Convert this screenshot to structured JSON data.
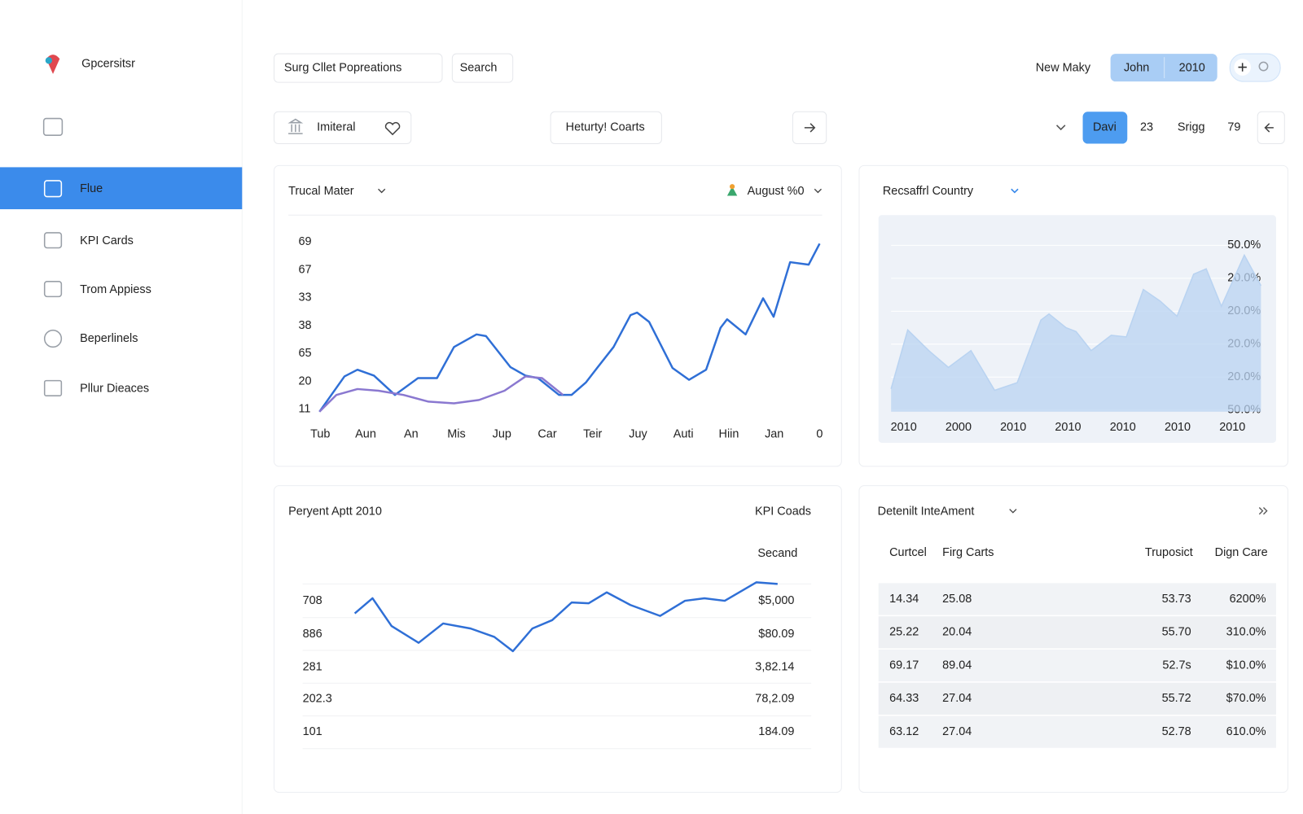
{
  "brand": "Gpcersitsr",
  "nav": [
    "Flue",
    "KPI Cards",
    "Trom Appiess",
    "Beperlinels",
    "Pllur Dieaces"
  ],
  "nav_active": 0,
  "header": {
    "title": "Surg Cllet Popreations",
    "search": "Search",
    "user": "New Maky",
    "tabs": [
      "John",
      "2010"
    ]
  },
  "toolbar": {
    "filter": "Imiteral",
    "center": "Heturty! Coarts",
    "pager": [
      "Davi",
      "23",
      "Srigg",
      "79"
    ]
  },
  "chart_data": [
    {
      "type": "line",
      "title": "Trucal Mater",
      "filter": "August %0",
      "y_labels": [
        "69",
        "67",
        "33",
        "38",
        "65",
        "20",
        "11"
      ],
      "x_labels": [
        "Tub",
        "Aun",
        "An",
        "Mis",
        "Jup",
        "Car",
        "Teir",
        "Juy",
        "Auti",
        "Hiin",
        "Jan",
        "0"
      ],
      "xlim": [
        0,
        100
      ],
      "ylim": [
        0,
        100
      ],
      "series": [
        {
          "color": "#2f6fd6",
          "x": [
            0,
            5,
            7.6,
            10.9,
            15.1,
            19.7,
            23.5,
            26.9,
            31.4,
            33.3,
            38.2,
            41.2,
            43.7,
            47.9,
            50.4,
            53.3,
            55.5,
            58.8,
            62.2,
            63.5,
            65.9,
            70.6,
            73.9,
            77.3,
            80.2,
            81.5,
            85.2,
            88.7,
            90.8,
            94.1,
            97.8,
            100
          ],
          "values": [
            0,
            21,
            25,
            21.5,
            10,
            20,
            20,
            38.5,
            46,
            45,
            26.5,
            21.5,
            20,
            10,
            10,
            17.5,
            26,
            38.5,
            57.5,
            59,
            53.5,
            26,
            19,
            25,
            50,
            55,
            46,
            67.5,
            56.5,
            89,
            87.5,
            100
          ]
        },
        {
          "color": "#8a78d0",
          "x": [
            0,
            3.4,
            7.6,
            11.8,
            16.8,
            21.8,
            26.9,
            31.9,
            37,
            41.2,
            44.5,
            48.7
          ],
          "values": [
            0,
            10,
            13.5,
            12.5,
            10,
            6,
            5,
            7,
            12.5,
            21,
            20,
            10
          ]
        }
      ]
    },
    {
      "type": "area",
      "title": "Recsaffrl Country",
      "y_labels": [
        "50.0%",
        "20.0%",
        "20.0%",
        "20.0%",
        "20.0%",
        "50.0%"
      ],
      "x_labels": [
        "2010",
        "2000",
        "2010",
        "2010",
        "2010",
        "2010",
        "2010"
      ],
      "xlim": [
        0,
        100
      ],
      "ylim": [
        0,
        110
      ],
      "color": "#b9d3f1",
      "x": [
        0,
        4.5,
        10.2,
        15.5,
        21.6,
        28,
        34.1,
        40.5,
        42.7,
        47.3,
        50,
        54.1,
        59.5,
        63.6,
        68.2,
        72.7,
        77.3,
        81.8,
        85.2,
        89.3,
        95.5,
        100
      ],
      "values": [
        15,
        53.5,
        40,
        29,
        40,
        14,
        19,
        60,
        64,
        55,
        52.5,
        40,
        50,
        49,
        80,
        72.5,
        62.5,
        90,
        93.5,
        69,
        102.5,
        82.5
      ]
    },
    {
      "type": "line",
      "title": "Peryent Aptt 2010",
      "subtitle": "KPI Coads",
      "column_label": "Secand",
      "left_labels": [
        "708",
        "886",
        "281",
        "202.3",
        "101"
      ],
      "right_labels": [
        "$5,000",
        "$80.09",
        "3,82.14",
        "78,2.09",
        "184.09"
      ],
      "highlight_row": 3,
      "xlim": [
        0,
        100
      ],
      "ylim": [
        0,
        90
      ],
      "series": [
        {
          "color": "#2f6fd6",
          "x": [
            0,
            4.2,
            8.7,
            15.1,
            20.9,
            27.4,
            33,
            37.4,
            42,
            46.7,
            51.3,
            55.3,
            59.6,
            65.2,
            72.2,
            78.1,
            82.7,
            87.5,
            95,
            100
          ],
          "values": [
            50,
            68,
            35,
            15,
            38,
            32,
            22,
            5,
            32,
            42,
            63,
            62,
            75,
            60,
            47,
            65,
            68,
            65,
            87,
            85
          ]
        }
      ]
    }
  ],
  "table": {
    "title": "Detenilt InteAment",
    "columns": [
      "Curtcel",
      "Firg Carts",
      "Truposict",
      "Dign Care"
    ],
    "rows": [
      [
        "14.34",
        "25.08",
        "53.73",
        "6200%"
      ],
      [
        "25.22",
        "20.04",
        "55.70",
        "310.0%"
      ],
      [
        "69.17",
        "89.04",
        "52.7s",
        "$10.0%"
      ],
      [
        "64.33",
        "27.04",
        "55.72",
        "$70.0%"
      ],
      [
        "63.12",
        "27.04",
        "52.78",
        "610.0%"
      ]
    ]
  }
}
